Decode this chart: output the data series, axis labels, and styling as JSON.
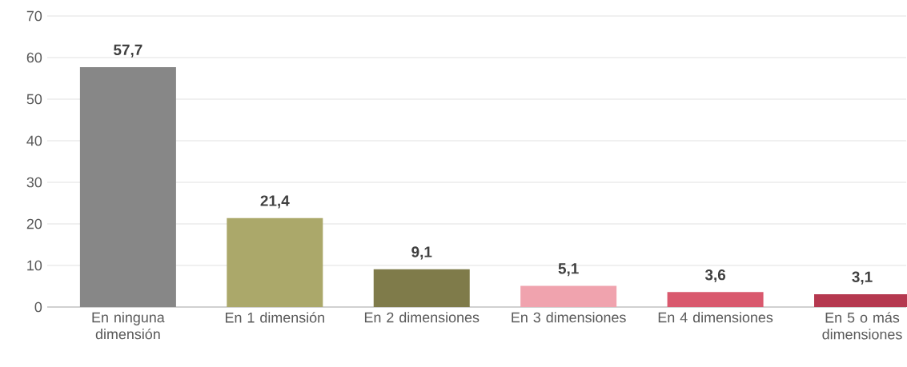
{
  "chart_data": {
    "type": "bar",
    "categories": [
      "En ninguna dimensión",
      "En 1 dimensión",
      "En 2 dimensiones",
      "En 3 dimensiones",
      "En 4 dimensiones",
      "En 5 o más dimensiones"
    ],
    "values": [
      57.7,
      21.4,
      9.1,
      5.1,
      3.6,
      3.1
    ],
    "value_labels": [
      "57,7",
      "21,4",
      "9,1",
      "5,1",
      "3,6",
      "3,1"
    ],
    "colors": [
      "#878787",
      "#aba86a",
      "#7f7b4a",
      "#f0a3ae",
      "#d9596e",
      "#b5384f"
    ],
    "ylim": [
      0,
      70
    ],
    "yticks": [
      0,
      10,
      20,
      30,
      40,
      50,
      60,
      70
    ],
    "grid": "y"
  }
}
